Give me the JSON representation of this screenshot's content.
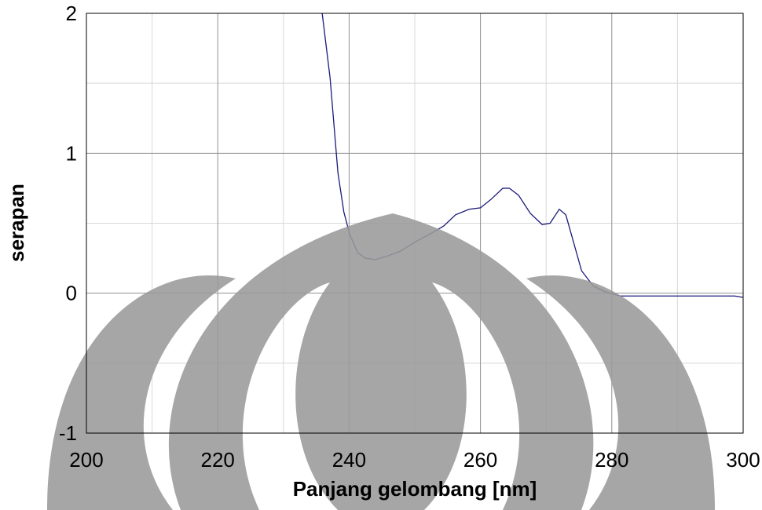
{
  "chart_data": {
    "type": "line",
    "x_label": "Panjang gelombang [nm]",
    "y_label": "serapan",
    "x": [
      235.9,
      237.1,
      238.3,
      239.2,
      240.1,
      241.3,
      242.5,
      244,
      245.5,
      247.8,
      250.2,
      252.6,
      254.4,
      256.2,
      258.3,
      260,
      261.6,
      263.4,
      264.4,
      265.8,
      267.6,
      269.4,
      270.6,
      272,
      273,
      274.2,
      275.4,
      277.2,
      279,
      281.3,
      288.5,
      298.7,
      300
    ],
    "values": [
      2,
      1.54,
      0.86,
      0.58,
      0.42,
      0.29,
      0.25,
      0.24,
      0.26,
      0.3,
      0.37,
      0.43,
      0.48,
      0.56,
      0.6,
      0.61,
      0.67,
      0.75,
      0.75,
      0.7,
      0.57,
      0.49,
      0.5,
      0.6,
      0.56,
      0.36,
      0.16,
      0.05,
      0.01,
      -0.02,
      -0.02,
      -0.02,
      -0.03
    ],
    "color": "#1a1a7a",
    "xlim": [
      200,
      300
    ],
    "ylim": [
      -1,
      2
    ],
    "xticks": [
      200,
      220,
      240,
      260,
      280,
      300
    ],
    "yticks": [
      -1,
      0,
      1,
      2
    ],
    "x_minor_ticks": [
      210,
      230,
      250,
      270,
      290
    ],
    "y_minor_ticks": [
      -0.5,
      0.5,
      1.5
    ],
    "grid": true
  }
}
